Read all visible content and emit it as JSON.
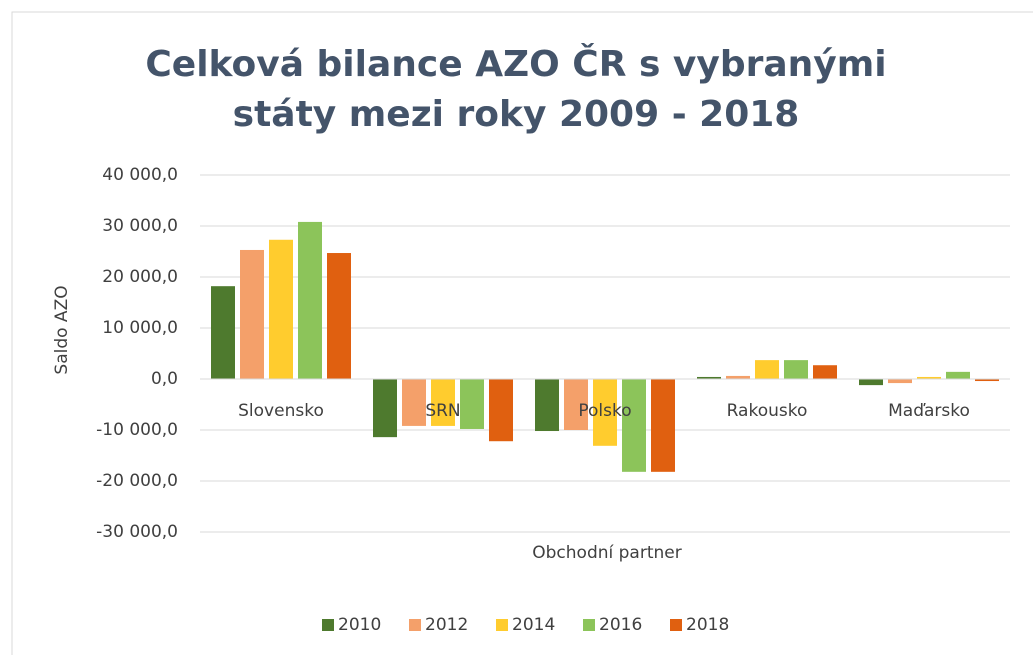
{
  "chart_data": {
    "type": "bar",
    "title": "Celková bilance AZO ČR s vybranými státy mezi roky 2009 - 2018",
    "y_label": "Saldo AZO",
    "x_label": "Obchodní partner",
    "categories": [
      "Slovensko",
      "SRN",
      "Polsko",
      "Rakousko",
      "Maďarsko"
    ],
    "series": [
      {
        "name": "2010",
        "color": "#4e7a2e",
        "values": [
          18200,
          -11400,
          -10200,
          400,
          -1200
        ]
      },
      {
        "name": "2012",
        "color": "#f4a06a",
        "values": [
          25300,
          -9200,
          -10000,
          600,
          -800
        ]
      },
      {
        "name": "2014",
        "color": "#ffcc2e",
        "values": [
          27300,
          -9200,
          -13100,
          3700,
          400
        ]
      },
      {
        "name": "2016",
        "color": "#8cc45a",
        "values": [
          30800,
          -9800,
          -18200,
          3700,
          1400
        ]
      },
      {
        "name": "2018",
        "color": "#e06010",
        "values": [
          24700,
          -12200,
          -18200,
          2700,
          -400
        ]
      }
    ],
    "ylim": [
      -30000,
      40000
    ],
    "yticks": [
      {
        "value": -30000,
        "label": "-30 000,0"
      },
      {
        "value": -20000,
        "label": "-20 000,0"
      },
      {
        "value": -10000,
        "label": "-10 000,0"
      },
      {
        "value": 0,
        "label": "0,0"
      },
      {
        "value": 10000,
        "label": "10 000,0"
      },
      {
        "value": 20000,
        "label": "20 000,0"
      },
      {
        "value": 30000,
        "label": "30 000,0"
      },
      {
        "value": 40000,
        "label": "40 000,0"
      }
    ],
    "grid": true,
    "legend": "bottom"
  }
}
